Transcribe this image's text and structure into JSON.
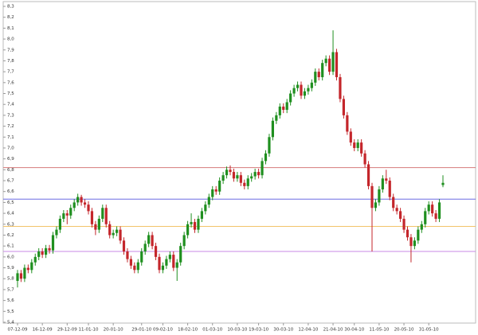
{
  "chart_data": {
    "type": "candlestick",
    "colors": {
      "up": "#1f8f1f",
      "down": "#c4262b"
    },
    "ylim": [
      5.4,
      8.3
    ],
    "yticks": [
      {
        "value": 5.4,
        "label": "5,4"
      },
      {
        "value": 5.5,
        "label": "5,5"
      },
      {
        "value": 5.6,
        "label": "5,6"
      },
      {
        "value": 5.7,
        "label": "5,7"
      },
      {
        "value": 5.8,
        "label": "5,8"
      },
      {
        "value": 5.9,
        "label": "5,9"
      },
      {
        "value": 6,
        "label": "6,0"
      },
      {
        "value": 6.1,
        "label": "6,1"
      },
      {
        "value": 6.2,
        "label": "6,2"
      },
      {
        "value": 6.3,
        "label": "6,3"
      },
      {
        "value": 6.4,
        "label": "6,4"
      },
      {
        "value": 6.5,
        "label": "6,5"
      },
      {
        "value": 6.6,
        "label": "6,6"
      },
      {
        "value": 6.7,
        "label": "6,7"
      },
      {
        "value": 6.8,
        "label": "6,8"
      },
      {
        "value": 6.9,
        "label": "6,9"
      },
      {
        "value": 7,
        "label": "7,0"
      },
      {
        "value": 7.1,
        "label": "7,1"
      },
      {
        "value": 7.2,
        "label": "7,2"
      },
      {
        "value": 7.3,
        "label": "7,3"
      },
      {
        "value": 7.4,
        "label": "7,4"
      },
      {
        "value": 7.5,
        "label": "7,5"
      },
      {
        "value": 7.6,
        "label": "7,6"
      },
      {
        "value": 7.7,
        "label": "7,7"
      },
      {
        "value": 7.8,
        "label": "7,8"
      },
      {
        "value": 7.9,
        "label": "7,9"
      },
      {
        "value": 8,
        "label": "8,0"
      },
      {
        "value": 8.1,
        "label": "8,1"
      },
      {
        "value": 8.2,
        "label": "8,2"
      },
      {
        "value": 8.3,
        "label": "8,3"
      }
    ],
    "hlines": [
      {
        "value": 6.82,
        "color": "#d57a7a"
      },
      {
        "value": 6.53,
        "color": "#6b6be3"
      },
      {
        "value": 6.28,
        "color": "#f2c46a"
      },
      {
        "value": 6.05,
        "color": "#c88ae6"
      }
    ],
    "categories": [
      "07-12-09",
      null,
      null,
      null,
      null,
      null,
      null,
      "16-12-09",
      null,
      null,
      null,
      null,
      null,
      null,
      "29-12-09",
      null,
      null,
      null,
      null,
      null,
      "11-01-10",
      null,
      null,
      null,
      null,
      null,
      null,
      "20-01-10",
      null,
      null,
      null,
      null,
      null,
      null,
      null,
      "29-01-10",
      null,
      null,
      null,
      null,
      null,
      "09-02-10",
      null,
      null,
      null,
      null,
      null,
      null,
      "18-02-10",
      null,
      null,
      null,
      null,
      null,
      null,
      "01-03-10",
      null,
      null,
      null,
      null,
      null,
      null,
      "10-03-10",
      null,
      null,
      null,
      null,
      null,
      "19-03-10",
      null,
      null,
      null,
      null,
      null,
      null,
      "30-03-10",
      null,
      null,
      null,
      null,
      null,
      null,
      "12-04-10",
      null,
      null,
      null,
      null,
      null,
      null,
      "21-04-10",
      null,
      null,
      null,
      null,
      null,
      "30-04-10",
      null,
      null,
      null,
      null,
      null,
      null,
      "11-05-10",
      null,
      null,
      null,
      null,
      null,
      null,
      "20-05-10",
      null,
      null,
      null,
      null,
      null,
      null,
      "31-05-10",
      null,
      null,
      null,
      null
    ],
    "ohlc": [
      [
        5.78,
        5.88,
        5.72,
        5.85
      ],
      [
        5.85,
        5.88,
        5.77,
        5.8
      ],
      [
        5.8,
        5.93,
        5.77,
        5.9
      ],
      [
        5.9,
        5.93,
        5.85,
        5.88
      ],
      [
        5.88,
        5.98,
        5.85,
        5.95
      ],
      [
        5.95,
        6.03,
        5.92,
        6.0
      ],
      [
        6.0,
        6.08,
        5.97,
        6.05
      ],
      [
        6.05,
        6.08,
        5.99,
        6.02
      ],
      [
        6.02,
        6.11,
        5.99,
        6.08
      ],
      [
        6.08,
        6.11,
        6.03,
        6.06
      ],
      [
        6.06,
        6.23,
        6.03,
        6.2
      ],
      [
        6.2,
        6.28,
        6.17,
        6.25
      ],
      [
        6.25,
        6.38,
        6.22,
        6.35
      ],
      [
        6.35,
        6.43,
        6.32,
        6.4
      ],
      [
        6.4,
        6.43,
        6.3,
        6.38
      ],
      [
        6.38,
        6.48,
        6.35,
        6.45
      ],
      [
        6.45,
        6.53,
        6.42,
        6.5
      ],
      [
        6.5,
        6.58,
        6.47,
        6.55
      ],
      [
        6.55,
        6.57,
        6.47,
        6.5
      ],
      [
        6.5,
        6.53,
        6.45,
        6.48
      ],
      [
        6.48,
        6.51,
        6.39,
        6.42
      ],
      [
        6.42,
        6.45,
        6.27,
        6.3
      ],
      [
        6.3,
        6.33,
        6.2,
        6.25
      ],
      [
        6.25,
        6.38,
        6.22,
        6.35
      ],
      [
        6.35,
        6.48,
        6.32,
        6.45
      ],
      [
        6.45,
        6.48,
        6.27,
        6.3
      ],
      [
        6.3,
        6.33,
        6.17,
        6.2
      ],
      [
        6.2,
        6.25,
        6.17,
        6.22
      ],
      [
        6.22,
        6.28,
        6.19,
        6.25
      ],
      [
        6.25,
        6.28,
        6.12,
        6.15
      ],
      [
        6.15,
        6.18,
        6.02,
        6.05
      ],
      [
        6.05,
        6.08,
        5.95,
        5.98
      ],
      [
        5.98,
        6.01,
        5.89,
        5.92
      ],
      [
        5.92,
        5.95,
        5.85,
        5.88
      ],
      [
        5.88,
        5.98,
        5.85,
        5.95
      ],
      [
        5.95,
        6.08,
        5.92,
        6.05
      ],
      [
        6.05,
        6.15,
        6.02,
        6.12
      ],
      [
        6.12,
        6.23,
        6.09,
        6.2
      ],
      [
        6.2,
        6.23,
        6.07,
        6.1
      ],
      [
        6.1,
        6.13,
        5.97,
        6.0
      ],
      [
        6.0,
        6.03,
        5.85,
        5.88
      ],
      [
        5.88,
        5.95,
        5.85,
        5.92
      ],
      [
        5.92,
        6.01,
        5.89,
        5.98
      ],
      [
        5.98,
        6.05,
        5.95,
        6.02
      ],
      [
        6.02,
        6.05,
        5.87,
        5.9
      ],
      [
        5.9,
        5.98,
        5.78,
        5.95
      ],
      [
        5.95,
        6.13,
        5.92,
        6.1
      ],
      [
        6.1,
        6.23,
        6.07,
        6.2
      ],
      [
        6.2,
        6.33,
        6.17,
        6.3
      ],
      [
        6.3,
        6.4,
        6.27,
        6.32
      ],
      [
        6.32,
        6.35,
        6.22,
        6.25
      ],
      [
        6.25,
        6.38,
        6.22,
        6.35
      ],
      [
        6.35,
        6.45,
        6.32,
        6.42
      ],
      [
        6.42,
        6.51,
        6.39,
        6.48
      ],
      [
        6.48,
        6.58,
        6.45,
        6.55
      ],
      [
        6.55,
        6.65,
        6.52,
        6.62
      ],
      [
        6.62,
        6.65,
        6.57,
        6.6
      ],
      [
        6.6,
        6.73,
        6.57,
        6.7
      ],
      [
        6.7,
        6.78,
        6.67,
        6.75
      ],
      [
        6.75,
        6.83,
        6.72,
        6.8
      ],
      [
        6.8,
        6.84,
        6.75,
        6.78
      ],
      [
        6.78,
        6.81,
        6.69,
        6.72
      ],
      [
        6.72,
        6.78,
        6.69,
        6.75
      ],
      [
        6.75,
        6.78,
        6.65,
        6.68
      ],
      [
        6.68,
        6.71,
        6.62,
        6.65
      ],
      [
        6.65,
        6.75,
        6.62,
        6.72
      ],
      [
        6.72,
        6.77,
        6.69,
        6.74
      ],
      [
        6.74,
        6.81,
        6.71,
        6.78
      ],
      [
        6.78,
        6.81,
        6.72,
        6.75
      ],
      [
        6.75,
        6.91,
        6.72,
        6.88
      ],
      [
        6.88,
        6.98,
        6.85,
        6.95
      ],
      [
        6.95,
        7.13,
        6.92,
        7.1
      ],
      [
        7.1,
        7.28,
        7.07,
        7.25
      ],
      [
        7.25,
        7.33,
        7.22,
        7.3
      ],
      [
        7.3,
        7.41,
        7.27,
        7.38
      ],
      [
        7.38,
        7.41,
        7.32,
        7.35
      ],
      [
        7.35,
        7.45,
        7.32,
        7.42
      ],
      [
        7.42,
        7.53,
        7.39,
        7.5
      ],
      [
        7.5,
        7.58,
        7.47,
        7.55
      ],
      [
        7.55,
        7.61,
        7.52,
        7.58
      ],
      [
        7.58,
        7.61,
        7.45,
        7.48
      ],
      [
        7.48,
        7.55,
        7.45,
        7.52
      ],
      [
        7.52,
        7.58,
        7.49,
        7.55
      ],
      [
        7.55,
        7.63,
        7.52,
        7.6
      ],
      [
        7.6,
        7.73,
        7.57,
        7.7
      ],
      [
        7.7,
        7.73,
        7.62,
        7.65
      ],
      [
        7.65,
        7.81,
        7.62,
        7.78
      ],
      [
        7.78,
        7.85,
        7.75,
        7.82
      ],
      [
        7.82,
        7.85,
        7.67,
        7.7
      ],
      [
        7.7,
        8.08,
        7.67,
        7.88
      ],
      [
        7.88,
        7.91,
        7.62,
        7.65
      ],
      [
        7.65,
        7.68,
        7.42,
        7.45
      ],
      [
        7.45,
        7.48,
        7.27,
        7.3
      ],
      [
        7.3,
        7.33,
        7.12,
        7.15
      ],
      [
        7.15,
        7.18,
        7.02,
        7.05
      ],
      [
        7.05,
        7.08,
        6.97,
        7.0
      ],
      [
        7.0,
        7.08,
        6.97,
        7.05
      ],
      [
        7.05,
        7.08,
        6.92,
        6.95
      ],
      [
        6.95,
        6.98,
        6.82,
        6.85
      ],
      [
        6.85,
        6.88,
        6.62,
        6.65
      ],
      [
        6.65,
        6.68,
        6.05,
        6.45
      ],
      [
        6.45,
        6.53,
        6.42,
        6.5
      ],
      [
        6.5,
        6.65,
        6.47,
        6.62
      ],
      [
        6.62,
        6.75,
        6.59,
        6.72
      ],
      [
        6.72,
        6.8,
        6.67,
        6.7
      ],
      [
        6.7,
        6.73,
        6.52,
        6.55
      ],
      [
        6.55,
        6.58,
        6.42,
        6.45
      ],
      [
        6.45,
        6.48,
        6.39,
        6.42
      ],
      [
        6.42,
        6.45,
        6.32,
        6.35
      ],
      [
        6.35,
        6.38,
        6.22,
        6.25
      ],
      [
        6.25,
        6.28,
        6.15,
        6.18
      ],
      [
        6.18,
        6.21,
        5.95,
        6.1
      ],
      [
        6.1,
        6.18,
        6.07,
        6.15
      ],
      [
        6.15,
        6.28,
        6.12,
        6.25
      ],
      [
        6.25,
        6.33,
        6.22,
        6.3
      ],
      [
        6.3,
        6.45,
        6.27,
        6.42
      ],
      [
        6.42,
        6.51,
        6.39,
        6.48
      ],
      [
        6.48,
        6.51,
        6.37,
        6.4
      ],
      [
        6.4,
        6.43,
        6.32,
        6.35
      ],
      [
        6.35,
        6.53,
        6.32,
        6.5
      ],
      [
        6.66,
        6.75,
        6.64,
        6.68
      ]
    ]
  }
}
